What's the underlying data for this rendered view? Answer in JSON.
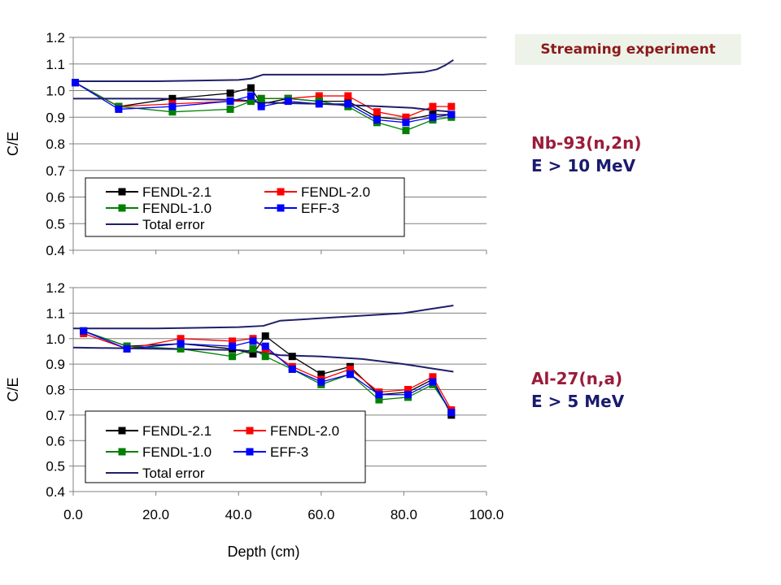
{
  "banner": {
    "text": "Streaming experiment",
    "color": "#8b1a1a"
  },
  "reactions": [
    {
      "name": "Nb-93(n,2n)",
      "condition": "E  > 10 MeV",
      "name_color": "#9b1b3a",
      "cond_color": "#1a1a6e"
    },
    {
      "name": "Al-27(n,a)",
      "condition": "E > 5 MeV",
      "name_color": "#9b1b3a",
      "cond_color": "#1a1a6e"
    }
  ],
  "colors": {
    "FENDL-2.1": "#000000",
    "FENDL-2.0": "#ff0000",
    "FENDL-1.0": "#008000",
    "EFF-3": "#0000ff",
    "Total error": "#1f1f6b"
  },
  "chart_data": [
    {
      "type": "line",
      "title": "",
      "xlabel": "",
      "ylabel": "C/E",
      "xlim": [
        0,
        100
      ],
      "ylim": [
        0.4,
        1.2
      ],
      "y_ticks": [
        "0.4",
        "0.5",
        "0.6",
        "0.7",
        "0.8",
        "0.9",
        "1.0",
        "1.1",
        "1.2"
      ],
      "grid": "horizontal",
      "legend_placement": "bottom-left",
      "series": [
        {
          "name": "FENDL-2.1",
          "marker": "square",
          "x": [
            0.5,
            11,
            24,
            38,
            43,
            45.5,
            52,
            59.5,
            66.5,
            73.5,
            80.5,
            87,
            91.5
          ],
          "y": [
            1.03,
            0.94,
            0.97,
            0.99,
            1.01,
            0.95,
            0.97,
            0.96,
            0.96,
            0.9,
            0.89,
            0.91,
            0.91
          ]
        },
        {
          "name": "FENDL-2.0",
          "marker": "square",
          "x": [
            0.5,
            11,
            24,
            38,
            43,
            45.5,
            52,
            59.5,
            66.5,
            73.5,
            80.5,
            87,
            91.5
          ],
          "y": [
            1.03,
            0.94,
            0.95,
            0.96,
            0.96,
            0.97,
            0.97,
            0.98,
            0.98,
            0.92,
            0.9,
            0.94,
            0.94
          ]
        },
        {
          "name": "FENDL-1.0",
          "marker": "square",
          "x": [
            0.5,
            11,
            24,
            38,
            43,
            45.5,
            52,
            59.5,
            66.5,
            73.5,
            80.5,
            87,
            91.5
          ],
          "y": [
            1.03,
            0.94,
            0.92,
            0.93,
            0.96,
            0.97,
            0.97,
            0.96,
            0.94,
            0.88,
            0.85,
            0.89,
            0.9
          ]
        },
        {
          "name": "EFF-3",
          "marker": "square",
          "x": [
            0.5,
            11,
            24,
            38,
            43,
            45.5,
            52,
            59.5,
            66.5,
            73.5,
            80.5,
            87,
            91.5
          ],
          "y": [
            1.03,
            0.93,
            0.94,
            0.96,
            0.98,
            0.94,
            0.96,
            0.95,
            0.95,
            0.89,
            0.88,
            0.9,
            0.91
          ]
        },
        {
          "name": "Total error",
          "marker": "none",
          "x": [
            0,
            20,
            40,
            43,
            46,
            60,
            75,
            85,
            88,
            90,
            92
          ],
          "y": [
            1.035,
            1.035,
            1.04,
            1.045,
            1.06,
            1.06,
            1.06,
            1.07,
            1.08,
            1.095,
            1.115
          ]
        },
        {
          "name": "",
          "marker": "none",
          "x": [
            0,
            20,
            40,
            46,
            60,
            75,
            82,
            88,
            92
          ],
          "y": [
            0.97,
            0.97,
            0.965,
            0.955,
            0.95,
            0.94,
            0.935,
            0.925,
            0.92
          ]
        }
      ],
      "legend": [
        "FENDL-2.1",
        "FENDL-2.0",
        "FENDL-1.0",
        "EFF-3",
        "Total error"
      ]
    },
    {
      "type": "line",
      "title": "",
      "xlabel": "Depth (cm)",
      "ylabel": "C/E",
      "xlim": [
        0,
        100
      ],
      "ylim": [
        0.4,
        1.2
      ],
      "y_ticks": [
        "0.4",
        "0.5",
        "0.6",
        "0.7",
        "0.8",
        "0.9",
        "1.0",
        "1.1",
        "1.2"
      ],
      "x_ticks": [
        "0.0",
        "20.0",
        "40.0",
        "60.0",
        "80.0",
        "100.0"
      ],
      "grid": "horizontal",
      "legend_placement": "bottom-left",
      "series": [
        {
          "name": "FENDL-2.1",
          "marker": "square",
          "x": [
            2.5,
            13,
            26,
            38.5,
            43.5,
            46.5,
            53,
            60,
            67,
            74,
            81,
            87,
            91.5
          ],
          "y": [
            1.03,
            0.97,
            0.98,
            0.96,
            0.94,
            1.01,
            0.93,
            0.86,
            0.89,
            0.78,
            0.79,
            0.84,
            0.7
          ]
        },
        {
          "name": "FENDL-2.0",
          "marker": "square",
          "x": [
            2.5,
            13,
            26,
            38.5,
            43.5,
            46.5,
            53,
            60,
            67,
            74,
            81,
            87,
            91.5
          ],
          "y": [
            1.02,
            0.96,
            1.0,
            0.99,
            1.0,
            0.96,
            0.89,
            0.84,
            0.88,
            0.79,
            0.8,
            0.85,
            0.72
          ]
        },
        {
          "name": "FENDL-1.0",
          "marker": "square",
          "x": [
            2.5,
            13,
            26,
            38.5,
            43.5,
            46.5,
            53,
            60,
            67,
            74,
            81,
            87,
            91.5
          ],
          "y": [
            1.03,
            0.97,
            0.96,
            0.93,
            0.96,
            0.93,
            0.88,
            0.82,
            0.86,
            0.76,
            0.77,
            0.82,
            0.71
          ]
        },
        {
          "name": "EFF-3",
          "marker": "square",
          "x": [
            2.5,
            13,
            26,
            38.5,
            43.5,
            46.5,
            53,
            60,
            67,
            74,
            81,
            87,
            91.5
          ],
          "y": [
            1.03,
            0.96,
            0.98,
            0.97,
            0.99,
            0.97,
            0.88,
            0.83,
            0.86,
            0.78,
            0.78,
            0.83,
            0.71
          ]
        },
        {
          "name": "Total error",
          "marker": "none",
          "x": [
            0,
            20,
            40,
            46,
            50,
            60,
            70,
            80,
            86,
            92
          ],
          "y": [
            1.04,
            1.04,
            1.045,
            1.05,
            1.07,
            1.08,
            1.09,
            1.1,
            1.115,
            1.13
          ]
        },
        {
          "name": "",
          "marker": "none",
          "x": [
            0,
            20,
            40,
            46,
            50,
            60,
            70,
            80,
            86,
            92
          ],
          "y": [
            0.965,
            0.96,
            0.955,
            0.945,
            0.935,
            0.93,
            0.92,
            0.9,
            0.885,
            0.87
          ]
        }
      ],
      "legend": [
        "FENDL-2.1",
        "FENDL-2.0",
        "FENDL-1.0",
        "EFF-3",
        "Total error"
      ]
    }
  ]
}
